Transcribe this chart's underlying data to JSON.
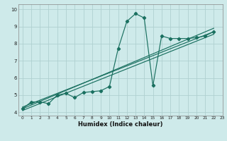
{
  "xlabel": "Humidex (Indice chaleur)",
  "bg_color": "#ceeaea",
  "grid_color": "#b0d0d0",
  "line_color": "#1a7060",
  "xlim": [
    -0.5,
    23
  ],
  "ylim": [
    3.8,
    10.3
  ],
  "yticks": [
    4,
    5,
    6,
    7,
    8,
    9,
    10
  ],
  "xticks": [
    0,
    1,
    2,
    3,
    4,
    5,
    6,
    7,
    8,
    9,
    10,
    11,
    12,
    13,
    14,
    15,
    16,
    17,
    18,
    19,
    20,
    21,
    22,
    23
  ],
  "data_x": [
    0,
    1,
    2,
    3,
    4,
    5,
    6,
    7,
    8,
    9,
    10,
    11,
    12,
    13,
    14,
    15,
    16,
    17,
    18,
    19,
    20,
    21,
    22
  ],
  "data_y": [
    4.2,
    4.6,
    4.6,
    4.5,
    5.0,
    5.1,
    4.85,
    5.15,
    5.2,
    5.25,
    5.5,
    7.7,
    9.3,
    9.75,
    9.5,
    5.55,
    8.45,
    8.3,
    8.3,
    8.3,
    8.35,
    8.45,
    8.7
  ],
  "trend1_x": [
    0,
    22
  ],
  "trend1_y": [
    4.1,
    8.55
  ],
  "trend2_x": [
    0,
    22
  ],
  "trend2_y": [
    4.3,
    8.7
  ],
  "trend3_x": [
    0,
    22
  ],
  "trend3_y": [
    4.2,
    8.9
  ]
}
